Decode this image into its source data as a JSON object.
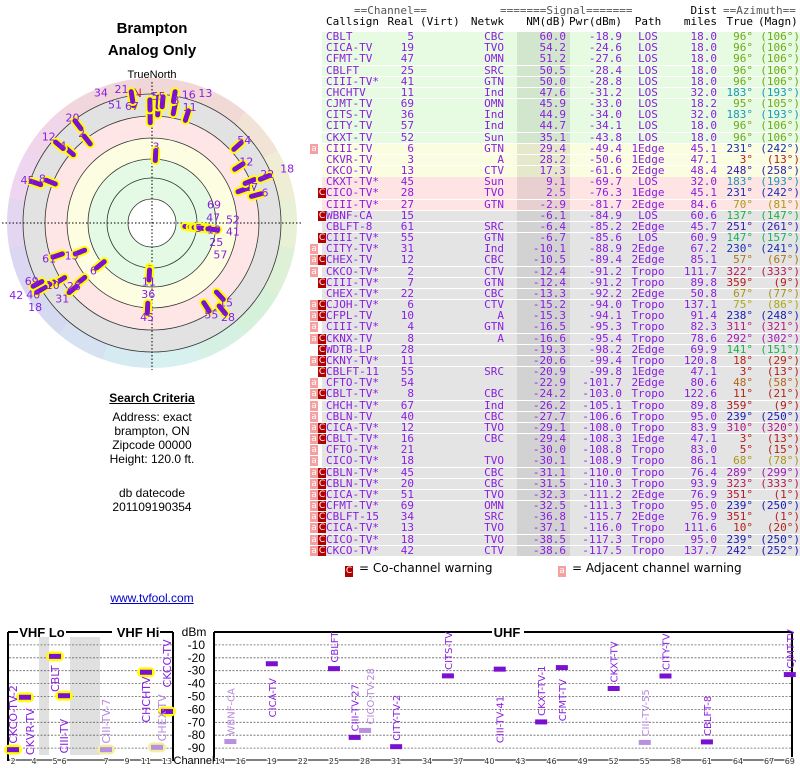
{
  "polar": {
    "title": "Brampton",
    "subtitle": "Analog Only",
    "north_label": "TrueNorth",
    "n_marker": "N"
  },
  "search_criteria": {
    "heading": "Search Criteria",
    "address": "Address: exact",
    "city": "brampton, ON",
    "zipcode": "Zipcode 00000",
    "height": "Height: 120.0 ft.",
    "db_label": "db datecode",
    "db_value": "201109190354"
  },
  "link": "www.tvfool.com",
  "table": {
    "group_channel": "==Channel==",
    "group_signal": "=======Signal=======",
    "group_dist": "Dist",
    "group_azimuth": "==Azimuth==",
    "headers": [
      "Callsign",
      "Real",
      "(Virt)",
      "Netwk",
      "NM(dB)",
      "Pwr(dBm)",
      "Path",
      "miles",
      "True",
      "(Magn)"
    ],
    "rows": [
      {
        "callsign": "CBLT",
        "real": "5",
        "netwk": "CBC",
        "nm": "60.0",
        "pwr": "-18.9",
        "path": "LOS",
        "dist": "18.0",
        "az": "96°",
        "magn": "(106°)",
        "warn": ""
      },
      {
        "callsign": "CICA-TV",
        "real": "19",
        "netwk": "TVO",
        "nm": "54.2",
        "pwr": "-24.6",
        "path": "LOS",
        "dist": "18.0",
        "az": "96°",
        "magn": "(106°)",
        "warn": ""
      },
      {
        "callsign": "CFMT-TV",
        "real": "47",
        "netwk": "OMN",
        "nm": "51.2",
        "pwr": "-27.6",
        "path": "LOS",
        "dist": "18.0",
        "az": "96°",
        "magn": "(106°)",
        "warn": ""
      },
      {
        "callsign": "CBLFT",
        "real": "25",
        "netwk": "SRC",
        "nm": "50.5",
        "pwr": "-28.4",
        "path": "LOS",
        "dist": "18.0",
        "az": "96°",
        "magn": "(106°)",
        "warn": ""
      },
      {
        "callsign": "CIII-TV*",
        "real": "41",
        "netwk": "GTN",
        "nm": "50.0",
        "pwr": "-28.8",
        "path": "LOS",
        "dist": "18.0",
        "az": "96°",
        "magn": "(106°)",
        "warn": ""
      },
      {
        "callsign": "CHCHTV",
        "real": "11",
        "netwk": "Ind",
        "nm": "47.6",
        "pwr": "-31.2",
        "path": "LOS",
        "dist": "32.0",
        "az": "183°",
        "magn": "(193°)",
        "warn": ""
      },
      {
        "callsign": "CJMT-TV",
        "real": "69",
        "netwk": "OMN",
        "nm": "45.9",
        "pwr": "-33.0",
        "path": "LOS",
        "dist": "18.2",
        "az": "95°",
        "magn": "(105°)",
        "warn": ""
      },
      {
        "callsign": "CITS-TV",
        "real": "36",
        "netwk": "Ind",
        "nm": "44.9",
        "pwr": "-34.0",
        "path": "LOS",
        "dist": "32.0",
        "az": "183°",
        "magn": "(193°)",
        "warn": ""
      },
      {
        "callsign": "CITY-TV",
        "real": "57",
        "netwk": "Ind",
        "nm": "44.7",
        "pwr": "-34.1",
        "path": "LOS",
        "dist": "18.0",
        "az": "96°",
        "magn": "(106°)",
        "warn": ""
      },
      {
        "callsign": "CKXT-TV",
        "real": "52",
        "netwk": "Sun",
        "nm": "35.1",
        "pwr": "-43.8",
        "path": "LOS",
        "dist": "18.0",
        "az": "96°",
        "magn": "(106°)",
        "warn": ""
      },
      {
        "callsign": "CIII-TV",
        "real": "6",
        "netwk": "GTN",
        "nm": "29.4",
        "pwr": "-49.4",
        "path": "1Edge",
        "dist": "45.1",
        "az": "231°",
        "magn": "(242°)",
        "warn": "a"
      },
      {
        "callsign": "CKVR-TV",
        "real": "3",
        "netwk": "A",
        "nm": "28.2",
        "pwr": "-50.6",
        "path": "1Edge",
        "dist": "47.1",
        "az": "3°",
        "magn": "(13°)",
        "warn": ""
      },
      {
        "callsign": "CKCO-TV",
        "real": "13",
        "netwk": "CTV",
        "nm": "17.3",
        "pwr": "-61.6",
        "path": "2Edge",
        "dist": "48.4",
        "az": "248°",
        "magn": "(258°)",
        "warn": ""
      },
      {
        "callsign": "CKXT-TV*",
        "real": "45",
        "netwk": "Sun",
        "nm": "9.1",
        "pwr": "-69.7",
        "path": "LOS",
        "dist": "32.0",
        "az": "183°",
        "magn": "(193°)",
        "warn": ""
      },
      {
        "callsign": "CICO-TV*",
        "real": "28",
        "netwk": "TVO",
        "nm": "2.5",
        "pwr": "-76.3",
        "path": "1Edge",
        "dist": "45.1",
        "az": "231°",
        "magn": "(242°)",
        "warn": "C"
      },
      {
        "callsign": "CIII-TV*",
        "real": "27",
        "netwk": "GTN",
        "nm": "-2.9",
        "pwr": "-81.7",
        "path": "2Edge",
        "dist": "84.6",
        "az": "70°",
        "magn": "(81°)",
        "warn": ""
      },
      {
        "callsign": "WBNF-CA",
        "real": "15",
        "netwk": "",
        "nm": "-6.1",
        "pwr": "-84.9",
        "path": "LOS",
        "dist": "60.6",
        "az": "137°",
        "magn": "(147°)",
        "warn": "C"
      },
      {
        "callsign": "CBLFT-8",
        "real": "61",
        "netwk": "SRC",
        "nm": "-6.4",
        "pwr": "-85.2",
        "path": "2Edge",
        "dist": "45.7",
        "az": "251°",
        "magn": "(261°)",
        "warn": ""
      },
      {
        "callsign": "CIII-TV*",
        "real": "55",
        "netwk": "GTN",
        "nm": "-6.7",
        "pwr": "-85.6",
        "path": "LOS",
        "dist": "60.9",
        "az": "147°",
        "magn": "(157°)",
        "warn": "C"
      },
      {
        "callsign": "CITY-TV*",
        "real": "31",
        "netwk": "Ind",
        "nm": "-10.1",
        "pwr": "-88.9",
        "path": "2Edge",
        "dist": "67.2",
        "az": "230°",
        "magn": "(241°)",
        "warn": "a"
      },
      {
        "callsign": "CHEX-TV",
        "real": "12",
        "netwk": "CBC",
        "nm": "-10.5",
        "pwr": "-89.4",
        "path": "2Edge",
        "dist": "85.1",
        "az": "57°",
        "magn": "(67°)",
        "warn": "aC"
      },
      {
        "callsign": "CKCO-TV*",
        "real": "2",
        "netwk": "CTV",
        "nm": "-12.4",
        "pwr": "-91.2",
        "path": "Tropo",
        "dist": "111.7",
        "az": "322°",
        "magn": "(333°)",
        "warn": "a"
      },
      {
        "callsign": "CIII-TV*",
        "real": "7",
        "netwk": "GTN",
        "nm": "-12.4",
        "pwr": "-91.2",
        "path": "Tropo",
        "dist": "89.8",
        "az": "359°",
        "magn": "(9°)",
        "warn": "C"
      },
      {
        "callsign": "CHEX-TV*",
        "real": "22",
        "netwk": "CBC",
        "nm": "-13.3",
        "pwr": "-92.2",
        "path": "2Edge",
        "dist": "50.8",
        "az": "67°",
        "magn": "(77°)",
        "warn": ""
      },
      {
        "callsign": "CJOH-TV*",
        "real": "6",
        "netwk": "CTV",
        "nm": "-15.2",
        "pwr": "-94.0",
        "path": "Tropo",
        "dist": "137.1",
        "az": "75°",
        "magn": "(86°)",
        "warn": "aC"
      },
      {
        "callsign": "CFPL-TV",
        "real": "10",
        "netwk": "A",
        "nm": "-15.3",
        "pwr": "-94.1",
        "path": "Tropo",
        "dist": "91.4",
        "az": "238°",
        "magn": "(248°)",
        "warn": "aC"
      },
      {
        "callsign": "CIII-TV*",
        "real": "4",
        "netwk": "GTN",
        "nm": "-16.5",
        "pwr": "-95.3",
        "path": "Tropo",
        "dist": "82.3",
        "az": "311°",
        "magn": "(321°)",
        "warn": "a"
      },
      {
        "callsign": "CKNX-TV",
        "real": "8",
        "netwk": "A",
        "nm": "-16.6",
        "pwr": "-95.4",
        "path": "Tropo",
        "dist": "78.6",
        "az": "292°",
        "magn": "(302°)",
        "warn": "aC"
      },
      {
        "callsign": "WDTB-LP",
        "real": "28",
        "netwk": "",
        "nm": "-19.3",
        "pwr": "-98.2",
        "path": "2Edge",
        "dist": "69.9",
        "az": "141°",
        "magn": "(151°)",
        "warn": "C"
      },
      {
        "callsign": "CKNY-TV*",
        "real": "11",
        "netwk": "",
        "nm": "-20.6",
        "pwr": "-99.4",
        "path": "Tropo",
        "dist": "120.8",
        "az": "18°",
        "magn": "(29°)",
        "warn": "aC"
      },
      {
        "callsign": "CBLFT-11",
        "real": "55",
        "netwk": "SRC",
        "nm": "-20.9",
        "pwr": "-99.8",
        "path": "1Edge",
        "dist": "47.1",
        "az": "3°",
        "magn": "(13°)",
        "warn": "C"
      },
      {
        "callsign": "CFTO-TV*",
        "real": "54",
        "netwk": "",
        "nm": "-22.9",
        "pwr": "-101.7",
        "path": "2Edge",
        "dist": "80.6",
        "az": "48°",
        "magn": "(58°)",
        "warn": "a"
      },
      {
        "callsign": "CBLT-TV*",
        "real": "8",
        "netwk": "CBC",
        "nm": "-24.2",
        "pwr": "-103.0",
        "path": "Tropo",
        "dist": "122.6",
        "az": "11°",
        "magn": "(21°)",
        "warn": "aC"
      },
      {
        "callsign": "CHCH-TV*",
        "real": "67",
        "netwk": "Ind",
        "nm": "-26.2",
        "pwr": "-105.1",
        "path": "Tropo",
        "dist": "89.8",
        "az": "359°",
        "magn": "(9°)",
        "warn": "a"
      },
      {
        "callsign": "CBLN-TV",
        "real": "40",
        "netwk": "CBC",
        "nm": "-27.7",
        "pwr": "-106.6",
        "path": "Tropo",
        "dist": "95.0",
        "az": "239°",
        "magn": "(250°)",
        "warn": "a"
      },
      {
        "callsign": "CICA-TV*",
        "real": "12",
        "netwk": "TVO",
        "nm": "-29.1",
        "pwr": "-108.0",
        "path": "Tropo",
        "dist": "83.9",
        "az": "310°",
        "magn": "(320°)",
        "warn": "aC"
      },
      {
        "callsign": "CBLT-TV*",
        "real": "16",
        "netwk": "CBC",
        "nm": "-29.4",
        "pwr": "-108.3",
        "path": "1Edge",
        "dist": "47.1",
        "az": "3°",
        "magn": "(13°)",
        "warn": "aC"
      },
      {
        "callsign": "CFTO-TV*",
        "real": "21",
        "netwk": "",
        "nm": "-30.0",
        "pwr": "-108.8",
        "path": "Tropo",
        "dist": "83.0",
        "az": "5°",
        "magn": "(15°)",
        "warn": "a"
      },
      {
        "callsign": "CICO-TV*",
        "real": "18",
        "netwk": "TVO",
        "nm": "-30.1",
        "pwr": "-108.9",
        "path": "Tropo",
        "dist": "86.1",
        "az": "68°",
        "magn": "(78°)",
        "warn": "a"
      },
      {
        "callsign": "CBLN-TV*",
        "real": "45",
        "netwk": "CBC",
        "nm": "-31.1",
        "pwr": "-110.0",
        "path": "Tropo",
        "dist": "76.4",
        "az": "289°",
        "magn": "(299°)",
        "warn": "aC"
      },
      {
        "callsign": "CBLN-TV*",
        "real": "20",
        "netwk": "CBC",
        "nm": "-31.5",
        "pwr": "-110.3",
        "path": "Tropo",
        "dist": "93.9",
        "az": "323°",
        "magn": "(333°)",
        "warn": "aC"
      },
      {
        "callsign": "CICA-TV*",
        "real": "51",
        "netwk": "TVO",
        "nm": "-32.3",
        "pwr": "-111.2",
        "path": "2Edge",
        "dist": "76.9",
        "az": "351°",
        "magn": "(1°)",
        "warn": "aC"
      },
      {
        "callsign": "CFMT-TV*",
        "real": "69",
        "netwk": "OMN",
        "nm": "-32.5",
        "pwr": "-111.3",
        "path": "Tropo",
        "dist": "95.0",
        "az": "239°",
        "magn": "(250°)",
        "warn": "aC"
      },
      {
        "callsign": "CBLFT-15",
        "real": "34",
        "netwk": "SRC",
        "nm": "-36.8",
        "pwr": "-115.7",
        "path": "2Edge",
        "dist": "76.9",
        "az": "351°",
        "magn": "(1°)",
        "warn": "aC"
      },
      {
        "callsign": "CICA-TV*",
        "real": "13",
        "netwk": "TVO",
        "nm": "-37.1",
        "pwr": "-116.0",
        "path": "Tropo",
        "dist": "111.6",
        "az": "10°",
        "magn": "(20°)",
        "warn": "aC"
      },
      {
        "callsign": "CICO-TV*",
        "real": "18",
        "netwk": "TVO",
        "nm": "-38.5",
        "pwr": "-117.3",
        "path": "Tropo",
        "dist": "95.0",
        "az": "239°",
        "magn": "(250°)",
        "warn": "aC"
      },
      {
        "callsign": "CKCO-TV*",
        "real": "42",
        "netwk": "CTV",
        "nm": "-38.6",
        "pwr": "-117.5",
        "path": "Tropo",
        "dist": "137.7",
        "az": "242°",
        "magn": "(252°)",
        "warn": "aC"
      }
    ],
    "legend_c_symbol": "C",
    "legend_c": "= Co-channel warning",
    "legend_a_symbol": "a",
    "legend_a": "= Adjacent channel warning",
    "colors": {
      "cochannel": "#b00000",
      "adjacent": "#f4a0a0",
      "text": "#8a1ee0"
    }
  },
  "chart_data": {
    "type": "scatter",
    "ylabel": "dBm",
    "xlabel": "Channel",
    "ylim": [
      0,
      -95
    ],
    "yticks": [
      -10,
      -20,
      -30,
      -40,
      -50,
      -60,
      -70,
      -80,
      -90
    ],
    "bands": [
      "VHF Lo",
      "VHF Hi",
      "UHF"
    ],
    "vhf_ticks": [
      2,
      4,
      5,
      6,
      7,
      9,
      11,
      13
    ],
    "uhf_ticks": [
      14,
      16,
      19,
      22,
      25,
      28,
      31,
      34,
      37,
      40,
      43,
      46,
      49,
      52,
      55,
      58,
      61,
      64,
      67,
      69
    ],
    "points": [
      {
        "label": "CKCO-TV-2",
        "ch": 2,
        "dbm": -91.2,
        "faint": false
      },
      {
        "label": "CKVR-TV",
        "ch": 3,
        "dbm": -50.6,
        "faint": false
      },
      {
        "label": "CBLT",
        "ch": 5,
        "dbm": -18.9,
        "faint": false
      },
      {
        "label": "CIII-TV",
        "ch": 6,
        "dbm": -49.4,
        "faint": false
      },
      {
        "label": "CIII-TV-7",
        "ch": 7,
        "dbm": -91.2,
        "faint": true
      },
      {
        "label": "CHCHTV",
        "ch": 11,
        "dbm": -31.2,
        "faint": false
      },
      {
        "label": "CHEX-TV",
        "ch": 12,
        "dbm": -89.4,
        "faint": true
      },
      {
        "label": "CKCO-TV",
        "ch": 13,
        "dbm": -61.6,
        "faint": false
      },
      {
        "label": "WBNF-CA",
        "ch": 15,
        "dbm": -84.9,
        "faint": true
      },
      {
        "label": "CICA-TV",
        "ch": 19,
        "dbm": -24.6,
        "faint": false
      },
      {
        "label": "CBLFT",
        "ch": 25,
        "dbm": -28.4,
        "faint": false
      },
      {
        "label": "CIII-TV-27",
        "ch": 27,
        "dbm": -81.7,
        "faint": false
      },
      {
        "label": "CICO-TV-28",
        "ch": 28,
        "dbm": -76.3,
        "faint": true
      },
      {
        "label": "CITY-TV-2",
        "ch": 31,
        "dbm": -88.9,
        "faint": false
      },
      {
        "label": "CITS-TV",
        "ch": 36,
        "dbm": -34.0,
        "faint": false
      },
      {
        "label": "CIII-TV-41",
        "ch": 41,
        "dbm": -28.8,
        "faint": false
      },
      {
        "label": "CKXT-TV-1",
        "ch": 45,
        "dbm": -69.7,
        "faint": false
      },
      {
        "label": "CFMT-TV",
        "ch": 47,
        "dbm": -27.6,
        "faint": false
      },
      {
        "label": "CKXT-TV",
        "ch": 52,
        "dbm": -43.8,
        "faint": false
      },
      {
        "label": "CIII-TV-55",
        "ch": 55,
        "dbm": -85.6,
        "faint": true
      },
      {
        "label": "CITY-TV",
        "ch": 57,
        "dbm": -34.1,
        "faint": false
      },
      {
        "label": "CBLFT-8",
        "ch": 61,
        "dbm": -85.2,
        "faint": false
      },
      {
        "label": "CJMT-TV",
        "ch": 69,
        "dbm": -33.0,
        "faint": false
      }
    ]
  }
}
